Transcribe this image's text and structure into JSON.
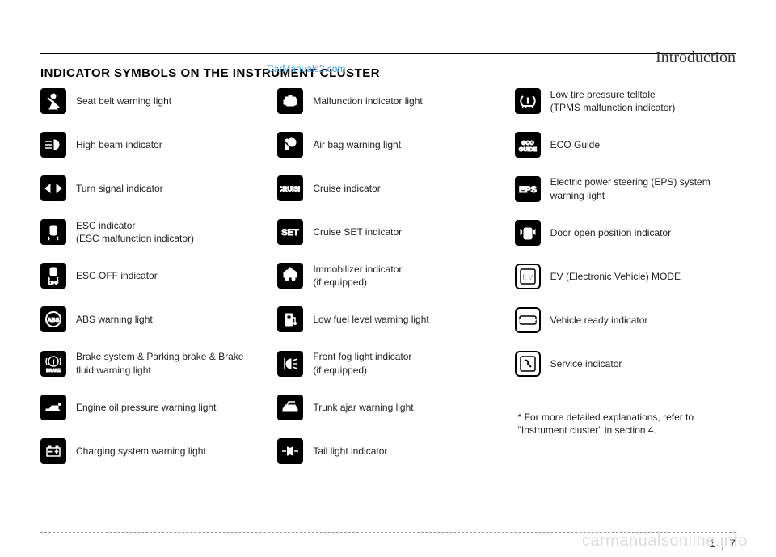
{
  "section": "Introduction",
  "title": "INDICATOR SYMBOLS ON THE INSTRUMENT CLUSTER",
  "watermark": "CarManuals2.com",
  "siteWatermark": "carmanualsonline.info",
  "pageLeft": "1",
  "pageRight": "7",
  "footnote": "* For more detailed explanations, refer to \"Instrument cluster\" in section 4.",
  "col1": [
    {
      "label": "Seat belt warning light",
      "icon": "seatbelt"
    },
    {
      "label": "High beam indicator",
      "icon": "highbeam"
    },
    {
      "label": "Turn signal indicator",
      "icon": "turnsignal"
    },
    {
      "label": "ESC indicator\n(ESC malfunction indicator)",
      "icon": "esc"
    },
    {
      "label": "ESC OFF indicator",
      "icon": "escoff"
    },
    {
      "label": "ABS warning light",
      "icon": "abs"
    },
    {
      "label": "Brake system & Parking brake & Brake fluid warning light",
      "icon": "brake"
    },
    {
      "label": "Engine oil pressure warning light",
      "icon": "oil"
    },
    {
      "label": "Charging system warning light",
      "icon": "battery"
    }
  ],
  "col2": [
    {
      "label": "Malfunction indicator light",
      "icon": "engine"
    },
    {
      "label": "Air bag warning light",
      "icon": "airbag"
    },
    {
      "label": "Cruise indicator",
      "icon": "cruise"
    },
    {
      "label": "Cruise SET indicator",
      "icon": "set"
    },
    {
      "label": "Immobilizer indicator\n(if equipped)",
      "icon": "immobilizer"
    },
    {
      "label": "Low fuel level warning light",
      "icon": "fuel"
    },
    {
      "label": "Front fog light indicator\n(if equipped)",
      "icon": "fog"
    },
    {
      "label": "Trunk ajar warning light",
      "icon": "trunk"
    },
    {
      "label": "Tail light indicator",
      "icon": "taillight"
    }
  ],
  "col3": [
    {
      "label": "Low tire pressure telltale\n(TPMS malfunction indicator)",
      "icon": "tpms"
    },
    {
      "label": "ECO Guide",
      "icon": "eco"
    },
    {
      "label": "Electric power steering (EPS) system warning light",
      "icon": "eps"
    },
    {
      "label": "Door open position indicator",
      "icon": "door"
    },
    {
      "label": "EV (Electronic Vehicle) MODE",
      "icon": "ev"
    },
    {
      "label": "Vehicle ready indicator",
      "icon": "ready"
    },
    {
      "label": "Service indicator",
      "icon": "service"
    }
  ]
}
